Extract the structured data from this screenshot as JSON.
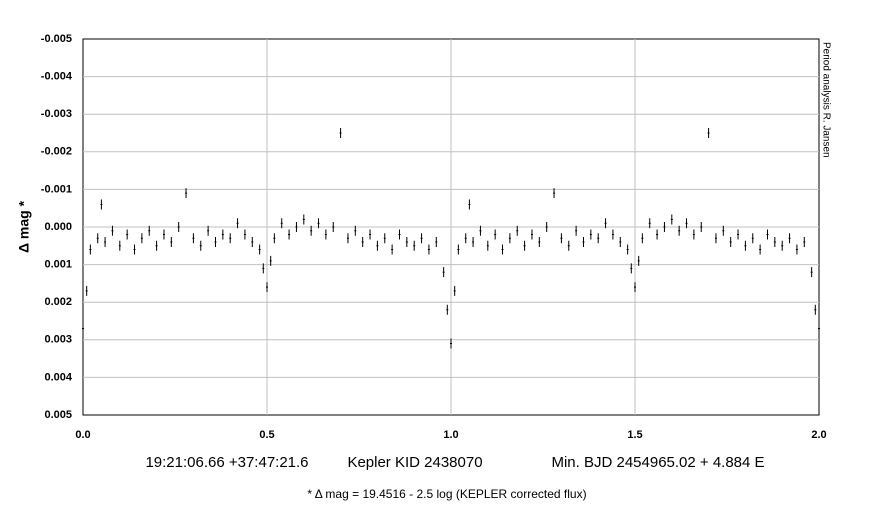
{
  "chart_data": {
    "type": "scatter",
    "y_label": "Δ mag *",
    "side_note": "Period analysis R. Jansen",
    "coordinates": "19:21:06.66 +37:47:21.6",
    "star": "Kepler KID 2438070",
    "ephemeris": "Min. BJD 2454965.02 + 4.884 E",
    "footnote": "* Δ mag = 19.4516 - 2.5 log (KEPLER corrected flux)",
    "color": "#000000",
    "grid": true,
    "xlim": [
      0,
      2
    ],
    "xticks": [
      {
        "value": 0,
        "label": "0.0"
      },
      0.5,
      {
        "value": 1,
        "label": "1.0"
      },
      1.5,
      {
        "value": 2,
        "label": "2.0"
      }
    ],
    "ylim": [
      0.005,
      -0.005
    ],
    "yticks": [
      -0.005,
      -0.004,
      -0.003,
      -0.002,
      -0.001,
      {
        "value": 0,
        "label": "0.000"
      },
      0.001,
      0.002,
      0.003,
      0.004,
      0.005
    ],
    "x": [
      0,
      0.01,
      0.02,
      0.04,
      0.05,
      0.06,
      0.08,
      0.1,
      0.12,
      0.14,
      0.16,
      0.18,
      0.2,
      0.22,
      0.24,
      0.26,
      0.28,
      0.3,
      0.32,
      0.34,
      0.36,
      0.38,
      0.4,
      0.42,
      0.44,
      0.46,
      0.48,
      0.49,
      0.5,
      0.51,
      0.52,
      0.54,
      0.56,
      0.58,
      0.6,
      0.62,
      0.64,
      0.66,
      0.68,
      0.7,
      0.72,
      0.74,
      0.76,
      0.78,
      0.8,
      0.82,
      0.84,
      0.86,
      0.88,
      0.9,
      0.92,
      0.94,
      0.96,
      0.98,
      0.99,
      1,
      1.01,
      1.02,
      1.04,
      1.05,
      1.06,
      1.08,
      1.1,
      1.12,
      1.14,
      1.16,
      1.18,
      1.2,
      1.22,
      1.24,
      1.26,
      1.28,
      1.3,
      1.32,
      1.34,
      1.36,
      1.38,
      1.4,
      1.42,
      1.44,
      1.46,
      1.48,
      1.49,
      1.5,
      1.51,
      1.52,
      1.54,
      1.56,
      1.58,
      1.6,
      1.62,
      1.64,
      1.66,
      1.68,
      1.7,
      1.72,
      1.74,
      1.76,
      1.78,
      1.8,
      1.82,
      1.84,
      1.86,
      1.88,
      1.9,
      1.92,
      1.94,
      1.96,
      1.98,
      1.99,
      2
    ],
    "values": [
      0.0027,
      0.0017,
      0.0006,
      0.0003,
      -0.0006,
      0.0004,
      0.0001,
      0.0005,
      0.0002,
      0.0006,
      0.0003,
      0.0001,
      0.0005,
      0.0002,
      0.0004,
      0,
      -0.0009,
      0.0003,
      0.0005,
      0.0001,
      0.0004,
      0.0002,
      0.0003,
      -0.0001,
      0.0002,
      0.0004,
      0.0006,
      0.0011,
      0.0016,
      0.0009,
      0.0003,
      -0.0001,
      0.0002,
      0,
      -0.0002,
      0.0001,
      -0.0001,
      0.0002,
      0,
      -0.0025,
      0.0003,
      0.0001,
      0.0004,
      0.0002,
      0.0005,
      0.0003,
      0.0006,
      0.0002,
      0.0004,
      0.0005,
      0.0003,
      0.0006,
      0.0004,
      0.0012,
      0.0022,
      0.0031,
      0.0017,
      0.0006,
      0.0003,
      -0.0006,
      0.0004,
      0.0001,
      0.0005,
      0.0002,
      0.0006,
      0.0003,
      0.0001,
      0.0005,
      0.0002,
      0.0004,
      0,
      -0.0009,
      0.0003,
      0.0005,
      0.0001,
      0.0004,
      0.0002,
      0.0003,
      -0.0001,
      0.0002,
      0.0004,
      0.0006,
      0.0011,
      0.0016,
      0.0009,
      0.0003,
      -0.0001,
      0.0002,
      0,
      -0.0002,
      0.0001,
      -0.0001,
      0.0002,
      0,
      -0.0025,
      0.0003,
      0.0001,
      0.0004,
      0.0002,
      0.0005,
      0.0003,
      0.0006,
      0.0002,
      0.0004,
      0.0005,
      0.0003,
      0.0006,
      0.0004,
      0.0012,
      0.0022,
      0.0027
    ]
  }
}
